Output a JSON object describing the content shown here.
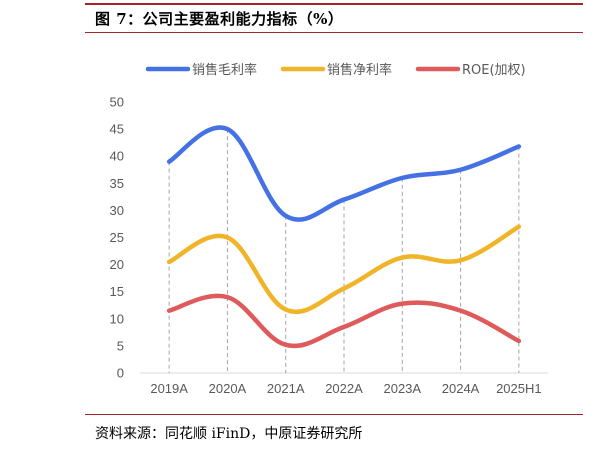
{
  "figure": {
    "title": "图 7：公司主要盈利能力指标（%）",
    "source": "资料来源：同花顺 iFinD，中原证券研究所"
  },
  "chart_data": {
    "type": "line",
    "categories": [
      "2019A",
      "2020A",
      "2021A",
      "2022A",
      "2023A",
      "2024A",
      "2025H1"
    ],
    "series": [
      {
        "name": "销售毛利率",
        "color": "#4472e5",
        "values": [
          39.0,
          45.0,
          29.0,
          32.0,
          36.0,
          37.5,
          41.8
        ]
      },
      {
        "name": "销售净利率",
        "color": "#f0b428",
        "values": [
          20.5,
          25.0,
          11.7,
          15.6,
          21.3,
          20.8,
          27.0
        ]
      },
      {
        "name": "ROE(加权)",
        "color": "#df5a5a",
        "values": [
          11.5,
          14.0,
          5.2,
          8.5,
          12.8,
          11.5,
          5.9
        ]
      }
    ],
    "yticks": [
      0,
      5,
      10,
      15,
      20,
      25,
      30,
      35,
      40,
      45,
      50
    ],
    "ylim": [
      0,
      50
    ],
    "grid": false,
    "category_dropline": true,
    "legend_position": "top"
  }
}
